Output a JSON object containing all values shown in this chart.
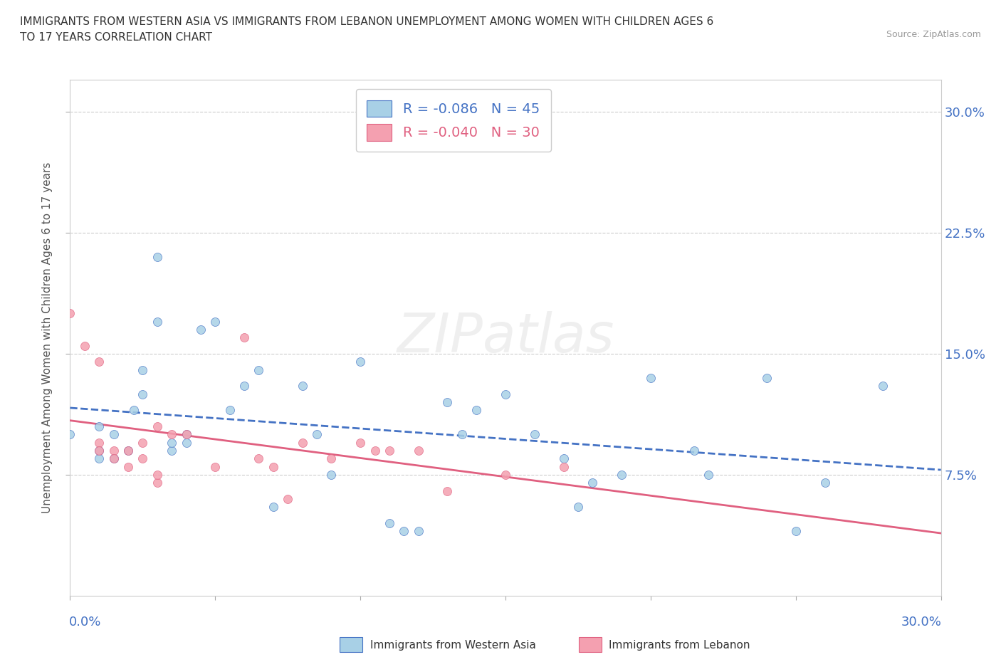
{
  "title_line1": "IMMIGRANTS FROM WESTERN ASIA VS IMMIGRANTS FROM LEBANON UNEMPLOYMENT AMONG WOMEN WITH CHILDREN AGES 6",
  "title_line2": "TO 17 YEARS CORRELATION CHART",
  "source": "Source: ZipAtlas.com",
  "ylabel": "Unemployment Among Women with Children Ages 6 to 17 years",
  "watermark": "ZIPatlas",
  "legend1_label": "R = -0.086   N = 45",
  "legend2_label": "R = -0.040   N = 30",
  "xmin": 0.0,
  "xmax": 0.3,
  "ymin": 0.0,
  "ymax": 0.32,
  "series1_face": "#A8D0E6",
  "series2_face": "#F4A0B0",
  "trend1_color": "#4472C4",
  "trend2_color": "#E06080",
  "ytick_vals": [
    0.075,
    0.15,
    0.225,
    0.3
  ],
  "ytick_labels": [
    "7.5%",
    "15.0%",
    "22.5%",
    "30.0%"
  ],
  "xtick_vals": [
    0.0,
    0.05,
    0.1,
    0.15,
    0.2,
    0.25,
    0.3
  ],
  "wa_x": [
    0.0,
    0.01,
    0.01,
    0.01,
    0.015,
    0.015,
    0.02,
    0.022,
    0.025,
    0.025,
    0.03,
    0.03,
    0.035,
    0.035,
    0.04,
    0.04,
    0.045,
    0.05,
    0.055,
    0.06,
    0.065,
    0.07,
    0.08,
    0.085,
    0.09,
    0.1,
    0.11,
    0.115,
    0.12,
    0.13,
    0.135,
    0.14,
    0.15,
    0.16,
    0.17,
    0.175,
    0.18,
    0.19,
    0.2,
    0.215,
    0.22,
    0.24,
    0.25,
    0.26,
    0.28
  ],
  "wa_y": [
    0.1,
    0.09,
    0.105,
    0.085,
    0.1,
    0.085,
    0.09,
    0.115,
    0.125,
    0.14,
    0.17,
    0.21,
    0.09,
    0.095,
    0.095,
    0.1,
    0.165,
    0.17,
    0.115,
    0.13,
    0.14,
    0.055,
    0.13,
    0.1,
    0.075,
    0.145,
    0.045,
    0.04,
    0.04,
    0.12,
    0.1,
    0.115,
    0.125,
    0.1,
    0.085,
    0.055,
    0.07,
    0.075,
    0.135,
    0.09,
    0.075,
    0.135,
    0.04,
    0.07,
    0.13
  ],
  "lb_x": [
    0.0,
    0.005,
    0.01,
    0.01,
    0.01,
    0.015,
    0.015,
    0.02,
    0.02,
    0.025,
    0.025,
    0.03,
    0.03,
    0.03,
    0.035,
    0.04,
    0.05,
    0.06,
    0.065,
    0.07,
    0.075,
    0.08,
    0.09,
    0.1,
    0.105,
    0.11,
    0.12,
    0.13,
    0.15,
    0.17
  ],
  "lb_y": [
    0.175,
    0.155,
    0.145,
    0.095,
    0.09,
    0.09,
    0.085,
    0.09,
    0.08,
    0.085,
    0.095,
    0.07,
    0.075,
    0.105,
    0.1,
    0.1,
    0.08,
    0.16,
    0.085,
    0.08,
    0.06,
    0.095,
    0.085,
    0.095,
    0.09,
    0.09,
    0.09,
    0.065,
    0.075,
    0.08
  ]
}
